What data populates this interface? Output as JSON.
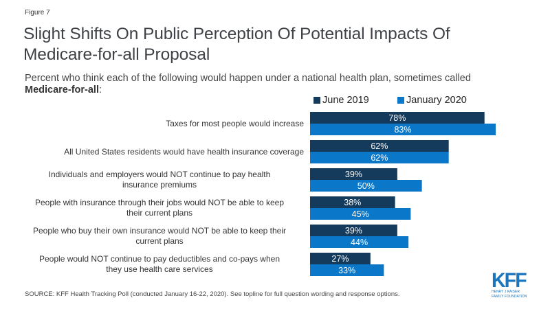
{
  "figure_label": "Figure 7",
  "title": "Slight Shifts On Public Perception Of Potential Impacts Of Medicare-for-all Proposal",
  "subtitle_text": "Percent who think each of the following would happen under a national health plan, sometimes called ",
  "subtitle_bold": "Medicare-for-all",
  "subtitle_end": ":",
  "source": "SOURCE: KFF Health Tracking Poll (conducted January 16-22, 2020). See topline for full question wording and response options.",
  "logo": {
    "name": "KFF",
    "org_line1": "HENRY J KAISER",
    "org_line2": "FAMILY FOUNDATION"
  },
  "colors": {
    "june_2019": "#143a5c",
    "january_2020": "#0b77c8"
  },
  "chart_data": {
    "type": "bar",
    "orientation": "horizontal",
    "title": "Slight Shifts On Public Perception Of Potential Impacts Of Medicare-for-all Proposal",
    "xlabel": "",
    "ylabel": "",
    "xlim": [
      0,
      100
    ],
    "grid": false,
    "legend_position": "top-right",
    "categories": [
      "Taxes for most people would increase",
      "All United States residents would have health insurance coverage",
      "Individuals and employers would NOT continue to pay health insurance premiums",
      "People with insurance through their jobs would NOT be able to keep their current plans",
      "People who buy their own insurance would NOT be able to keep their current plans",
      "People would NOT continue to pay deductibles and co-pays when they use health care services"
    ],
    "category_lines": [
      [
        "Taxes for most people would increase"
      ],
      [
        "All United States residents would have health insurance coverage"
      ],
      [
        "Individuals and employers would NOT continue to pay health",
        "insurance premiums"
      ],
      [
        "People with insurance through their jobs would NOT be able to keep",
        "their current plans"
      ],
      [
        "People who buy their own insurance would NOT be able to keep their",
        "current plans"
      ],
      [
        "People would NOT continue to pay deductibles and co-pays when",
        "they use health care services"
      ]
    ],
    "series": [
      {
        "name": "June 2019",
        "values": [
          78,
          62,
          39,
          38,
          39,
          27
        ],
        "labels": [
          "78%",
          "62%",
          "39%",
          "38%",
          "39%",
          "27%"
        ]
      },
      {
        "name": "January 2020",
        "values": [
          83,
          62,
          50,
          45,
          44,
          33
        ],
        "labels": [
          "83%",
          "62%",
          "50%",
          "45%",
          "44%",
          "33%"
        ]
      }
    ]
  }
}
